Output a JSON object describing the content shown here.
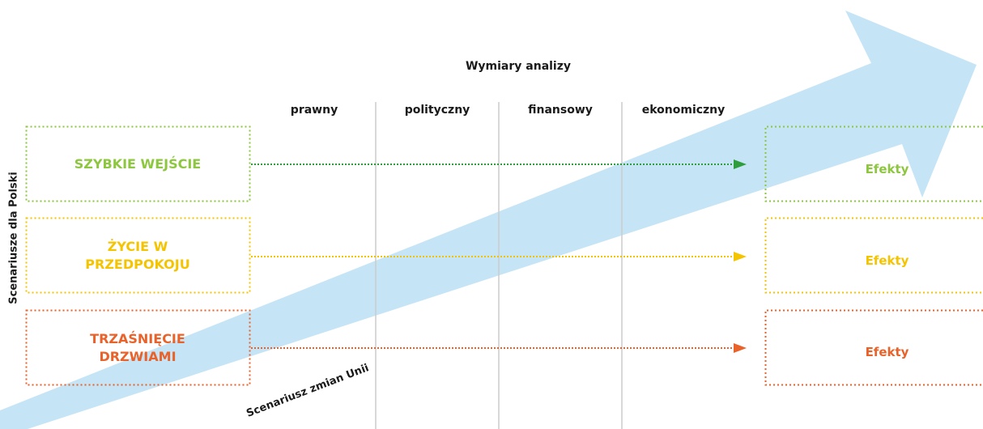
{
  "dimensions": {
    "title": "Wymiary analizy",
    "items": [
      "prawny",
      "polityczny",
      "finansowy",
      "ekonomiczny"
    ]
  },
  "scenarios_axis_label": "Scenariusze dla Polski",
  "arrow_label": "Scenariusz zmian Unii",
  "scenarios": [
    {
      "lines": [
        "SZYBKIE WEJŚCIE"
      ],
      "effect": "Efekty",
      "color": "#8dc63f",
      "arrow_color": "#2e9e3c"
    },
    {
      "lines": [
        "ŻYCIE W",
        "PRZEDPOKOJU"
      ],
      "effect": "Efekty",
      "color": "#f5c400",
      "arrow_color": "#f5c400"
    },
    {
      "lines": [
        "TRZAŚNIĘCIE",
        "DRZWIAMI"
      ],
      "effect": "Efekty",
      "color": "#e8622a",
      "arrow_color": "#e8622a"
    }
  ],
  "colors": {
    "big_arrow": "#c5e4f5",
    "dividers": "#cccccc"
  }
}
